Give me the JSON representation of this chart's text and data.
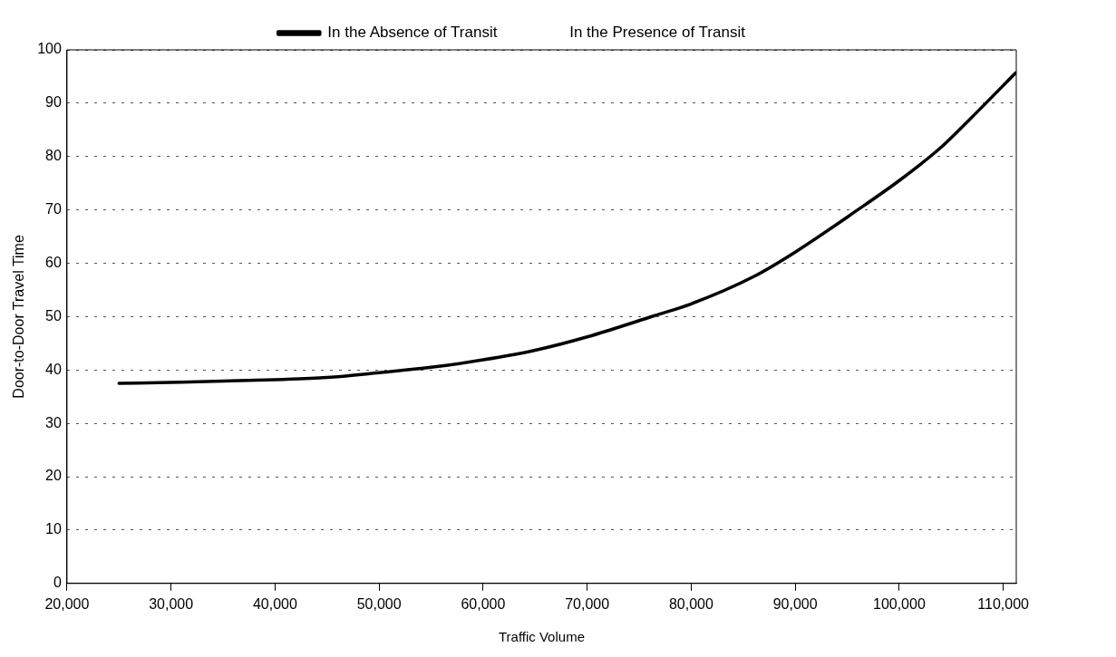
{
  "chart_data": {
    "type": "line",
    "xlabel": "Traffic Volume",
    "ylabel": "Door-to-Door Travel Time",
    "xlim": [
      20000,
      111250
    ],
    "ylim": [
      0,
      100
    ],
    "xticks": [
      {
        "value": 20000,
        "label": "20,000"
      },
      {
        "value": 30000,
        "label": "30,000"
      },
      {
        "value": 40000,
        "label": "40,000"
      },
      {
        "value": 50000,
        "label": "50,000"
      },
      {
        "value": 60000,
        "label": "60,000"
      },
      {
        "value": 70000,
        "label": "70,000"
      },
      {
        "value": 80000,
        "label": "80,000"
      },
      {
        "value": 90000,
        "label": "90,000"
      },
      {
        "value": 100000,
        "label": "100,000"
      },
      {
        "value": 110000,
        "label": "110,000"
      }
    ],
    "yticks": [
      0,
      10,
      20,
      30,
      40,
      50,
      60,
      70,
      80,
      90,
      100
    ],
    "grid": "y",
    "legend": "top",
    "marker": "none",
    "line_style": "solid",
    "x": [
      25000,
      31000,
      40000,
      45000,
      50000,
      55000,
      60000,
      65000,
      70000,
      76500,
      80000,
      86000,
      90000,
      96000,
      100000,
      104000,
      107000,
      111200
    ],
    "series": [
      {
        "name": "In the Absence of Transit",
        "color": "#000000",
        "values": [
          37.5,
          37.7,
          38.2,
          38.6,
          39.5,
          40.5,
          41.9,
          43.7,
          46.2,
          50.2,
          52.4,
          57.5,
          62.1,
          70.0,
          75.5,
          81.7,
          87.4,
          95.7
        ]
      },
      {
        "name": "In the Presence of Transit",
        "values": [
          null,
          null,
          null,
          null,
          null,
          null,
          null,
          null,
          null,
          null,
          null,
          null,
          null,
          null,
          null,
          null,
          null,
          null
        ]
      }
    ]
  }
}
